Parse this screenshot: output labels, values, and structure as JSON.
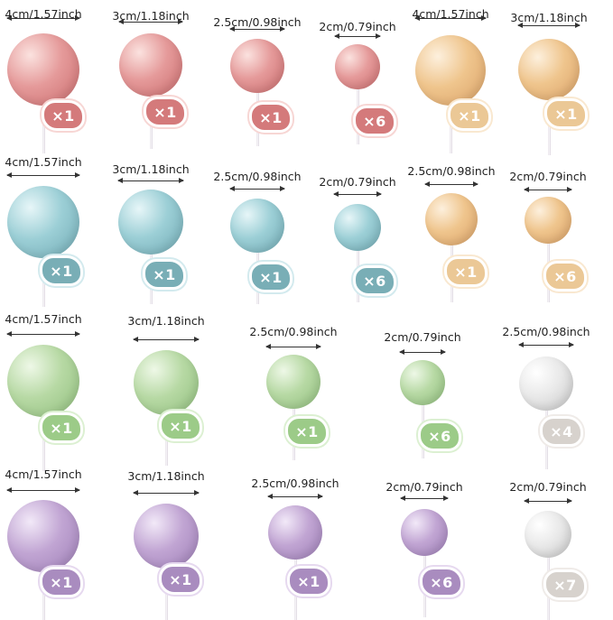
{
  "colors": {
    "pink": {
      "ball": "#e59a9a",
      "dark": "#c96b6c",
      "light": "#fbe2df",
      "badge": "#d47a7b",
      "badge_ring": "#f7d6d4"
    },
    "peach": {
      "ball": "#efc58d",
      "dark": "#d9a066",
      "light": "#fdf0dd",
      "badge": "#ebc896",
      "badge_ring": "#f9e8d0"
    },
    "blue": {
      "ball": "#9ccfd6",
      "dark": "#6fa8b2",
      "light": "#e7f6f8",
      "badge": "#79aeb6",
      "badge_ring": "#d3eaee"
    },
    "green": {
      "ball": "#b7d9a4",
      "dark": "#8fbd7c",
      "light": "#eef8e7",
      "badge": "#9ccb88",
      "badge_ring": "#dcf0d2"
    },
    "purple": {
      "ball": "#c1a5d3",
      "dark": "#9c7db5",
      "light": "#f2e9f8",
      "badge": "#a98cbf",
      "badge_ring": "#e6d9ef"
    },
    "white": {
      "ball": "#e9e9e9",
      "dark": "#c5c5c5",
      "light": "#ffffff",
      "badge": "#d7d2cd",
      "badge_ring": "#efebe8"
    }
  },
  "items": [
    {
      "size_label": "4cm/1.57inch",
      "count": "×1",
      "color": "pink"
    },
    {
      "size_label": "3cm/1.18inch",
      "count": "×1",
      "color": "pink"
    },
    {
      "size_label": "2.5cm/0.98inch",
      "count": "×1",
      "color": "pink"
    },
    {
      "size_label": "2cm/0.79inch",
      "count": "×6",
      "color": "pink"
    },
    {
      "size_label": "4cm/1.57inch",
      "count": "×1",
      "color": "peach"
    },
    {
      "size_label": "3cm/1.18inch",
      "count": "×1",
      "color": "peach"
    },
    {
      "size_label": "4cm/1.57inch",
      "count": "×1",
      "color": "blue"
    },
    {
      "size_label": "3cm/1.18inch",
      "count": "×1",
      "color": "blue"
    },
    {
      "size_label": "2.5cm/0.98inch",
      "count": "×1",
      "color": "blue"
    },
    {
      "size_label": "2cm/0.79inch",
      "count": "×6",
      "color": "blue"
    },
    {
      "size_label": "2.5cm/0.98inch",
      "count": "×1",
      "color": "peach"
    },
    {
      "size_label": "2cm/0.79inch",
      "count": "×6",
      "color": "peach"
    },
    {
      "size_label": "4cm/1.57inch",
      "count": "×1",
      "color": "green"
    },
    {
      "size_label": "3cm/1.18inch",
      "count": "×1",
      "color": "green"
    },
    {
      "size_label": "2.5cm/0.98inch",
      "count": "×1",
      "color": "green"
    },
    {
      "size_label": "2cm/0.79inch",
      "count": "×6",
      "color": "green"
    },
    {
      "size_label": "2.5cm/0.98inch",
      "count": "×4",
      "color": "white"
    },
    {
      "size_label": "4cm/1.57inch",
      "count": "×1",
      "color": "purple"
    },
    {
      "size_label": "3cm/1.18inch",
      "count": "×1",
      "color": "purple"
    },
    {
      "size_label": "2.5cm/0.98inch",
      "count": "×1",
      "color": "purple"
    },
    {
      "size_label": "2cm/0.79inch",
      "count": "×6",
      "color": "purple"
    },
    {
      "size_label": "2cm/0.79inch",
      "count": "×7",
      "color": "white"
    }
  ]
}
